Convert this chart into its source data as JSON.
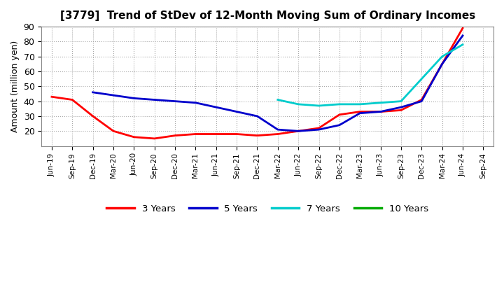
{
  "title": "[3779]  Trend of StDev of 12-Month Moving Sum of Ordinary Incomes",
  "ylabel": "Amount (million yen)",
  "ylim": [
    10,
    90
  ],
  "yticks": [
    20,
    30,
    40,
    50,
    60,
    70,
    80,
    90
  ],
  "background_color": "#FFFFFF",
  "plot_bg_color": "#FFFFFF",
  "grid_color": "#AAAAAA",
  "x_labels": [
    "Jun-19",
    "Sep-19",
    "Dec-19",
    "Mar-20",
    "Jun-20",
    "Sep-20",
    "Dec-20",
    "Mar-21",
    "Jun-21",
    "Sep-21",
    "Dec-21",
    "Mar-22",
    "Jun-22",
    "Sep-22",
    "Dec-22",
    "Mar-23",
    "Jun-23",
    "Sep-23",
    "Dec-23",
    "Mar-24",
    "Jun-24",
    "Sep-24"
  ],
  "series": [
    {
      "name": "3 Years",
      "color": "#FF0000",
      "linewidth": 2.0,
      "data_x": [
        0,
        1,
        2,
        3,
        4,
        5,
        6,
        7,
        8,
        9,
        10,
        11,
        12,
        13,
        14,
        15,
        16,
        17,
        18,
        19,
        20
      ],
      "data_y": [
        43,
        41,
        30,
        20,
        16,
        15,
        17,
        18,
        18,
        18,
        17,
        18,
        20,
        22,
        31,
        33,
        33,
        34,
        41,
        65,
        89
      ]
    },
    {
      "name": "5 Years",
      "color": "#0000CC",
      "linewidth": 2.0,
      "data_x": [
        2,
        3,
        4,
        5,
        6,
        7,
        8,
        9,
        10,
        11,
        12,
        13,
        14,
        15,
        16,
        17,
        18,
        19,
        20
      ],
      "data_y": [
        46,
        44,
        42,
        41,
        40,
        39,
        36,
        33,
        30,
        21,
        20,
        21,
        24,
        32,
        33,
        36,
        40,
        65,
        84
      ]
    },
    {
      "name": "7 Years",
      "color": "#00CCCC",
      "linewidth": 2.0,
      "data_x": [
        11,
        12,
        13,
        14,
        15,
        16,
        17,
        18,
        19,
        20
      ],
      "data_y": [
        41,
        38,
        37,
        38,
        38,
        39,
        40,
        55,
        70,
        78
      ]
    },
    {
      "name": "10 Years",
      "color": "#00AA00",
      "linewidth": 2.0,
      "data_x": [],
      "data_y": []
    }
  ],
  "legend_labels": [
    "3 Years",
    "5 Years",
    "7 Years",
    "10 Years"
  ],
  "legend_colors": [
    "#FF0000",
    "#0000CC",
    "#00CCCC",
    "#00AA00"
  ]
}
